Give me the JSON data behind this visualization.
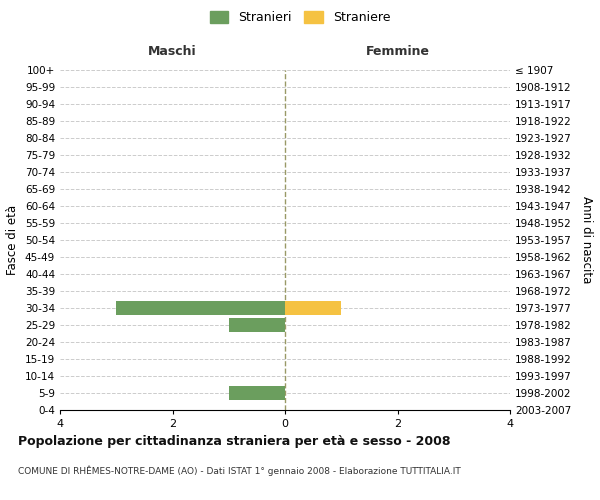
{
  "age_groups": [
    "100+",
    "95-99",
    "90-94",
    "85-89",
    "80-84",
    "75-79",
    "70-74",
    "65-69",
    "60-64",
    "55-59",
    "50-54",
    "45-49",
    "40-44",
    "35-39",
    "30-34",
    "25-29",
    "20-24",
    "15-19",
    "10-14",
    "5-9",
    "0-4"
  ],
  "birth_years": [
    "≤ 1907",
    "1908-1912",
    "1913-1917",
    "1918-1922",
    "1923-1927",
    "1928-1932",
    "1933-1937",
    "1938-1942",
    "1943-1947",
    "1948-1952",
    "1953-1957",
    "1958-1962",
    "1963-1967",
    "1968-1972",
    "1973-1977",
    "1978-1982",
    "1983-1987",
    "1988-1992",
    "1993-1997",
    "1998-2002",
    "2003-2007"
  ],
  "maschi_stranieri": [
    0,
    0,
    0,
    0,
    0,
    0,
    0,
    0,
    0,
    0,
    0,
    0,
    0,
    0,
    3,
    1,
    0,
    0,
    0,
    1,
    0
  ],
  "femmine_straniere": [
    0,
    0,
    0,
    0,
    0,
    0,
    0,
    0,
    0,
    0,
    0,
    0,
    0,
    0,
    1,
    0,
    0,
    0,
    0,
    0,
    0
  ],
  "color_maschi": "#6b9e5e",
  "color_femmine": "#f5c242",
  "xlim": [
    -4,
    4
  ],
  "xticks": [
    -4,
    -2,
    0,
    2,
    4
  ],
  "xlabel_maschi": "Maschi",
  "xlabel_femmine": "Femmine",
  "ylabel_left": "Fasce di età",
  "ylabel_right": "Anni di nascita",
  "legend_stranieri": "Stranieri",
  "legend_straniere": "Straniere",
  "title": "Popolazione per cittadinanza straniera per età e sesso - 2008",
  "subtitle": "COMUNE DI RHÊMES-NOTRE-DAME (AO) - Dati ISTAT 1° gennaio 2008 - Elaborazione TUTTITALIA.IT",
  "background_color": "#ffffff",
  "grid_color": "#cccccc",
  "bar_height": 0.8,
  "dashed_line_color": "#999966"
}
